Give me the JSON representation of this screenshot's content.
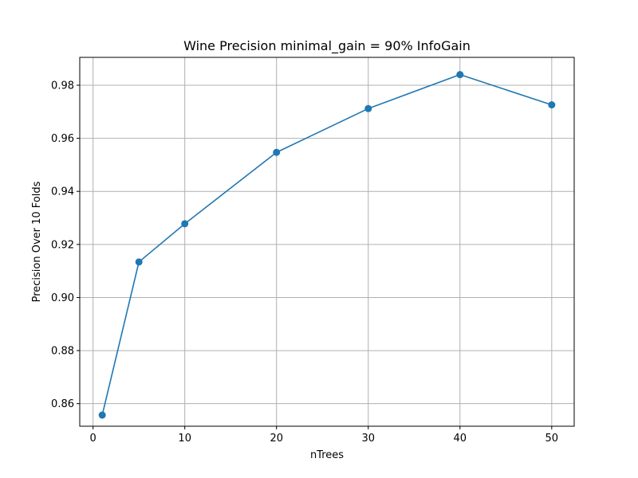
{
  "chart_data": {
    "type": "line",
    "title": "Wine Precision minimal_gain = 90% InfoGain",
    "xlabel": "nTrees",
    "ylabel": "Precision Over 10 Folds",
    "x": [
      1,
      5,
      10,
      20,
      30,
      40,
      50
    ],
    "series": [
      {
        "values": [
          0.8557,
          0.9134,
          0.9278,
          0.9547,
          0.9712,
          0.984,
          0.9726
        ],
        "color": "#1f77b4",
        "marker": "circle"
      }
    ],
    "xlim": [
      -1.45,
      52.45
    ],
    "ylim": [
      0.8515,
      0.9905
    ],
    "xticks": [
      0,
      10,
      20,
      30,
      40,
      50
    ],
    "yticks": [
      0.86,
      0.88,
      0.9,
      0.92,
      0.94,
      0.96,
      0.98
    ],
    "xtick_labels": [
      "0",
      "10",
      "20",
      "30",
      "40",
      "50"
    ],
    "ytick_labels": [
      "0.86",
      "0.88",
      "0.90",
      "0.92",
      "0.94",
      "0.96",
      "0.98"
    ],
    "grid": true,
    "legend": "none"
  }
}
